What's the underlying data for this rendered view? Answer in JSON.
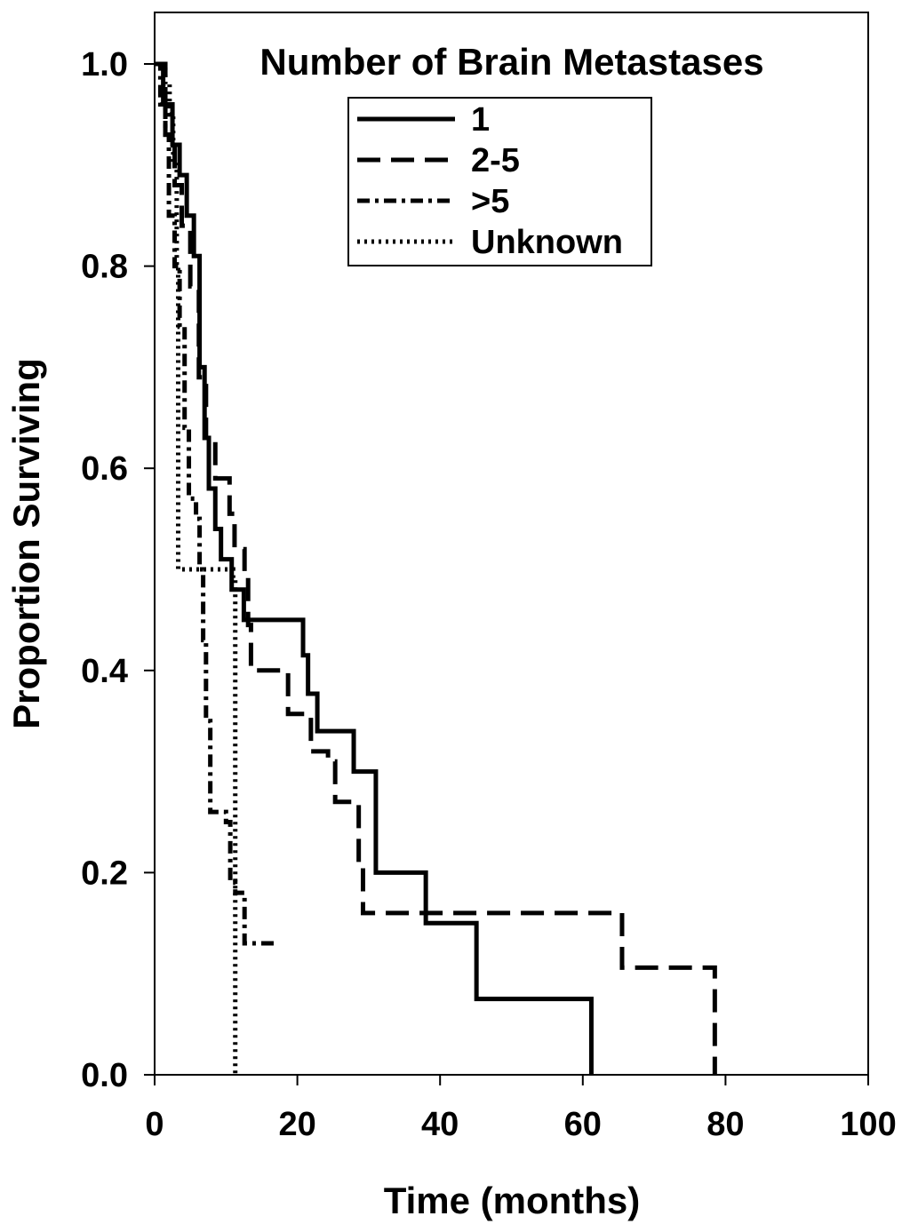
{
  "chart_data": {
    "type": "line",
    "title": "Number of Brain Metastases",
    "xlabel": "Time (months)",
    "ylabel": "Proportion Surviving",
    "xlim": [
      0,
      100
    ],
    "ylim": [
      0,
      1.0
    ],
    "x_ticks": [
      "0",
      "20",
      "40",
      "60",
      "80",
      "100"
    ],
    "y_ticks": [
      "0.0",
      "0.2",
      "0.4",
      "0.6",
      "0.8",
      "1.0"
    ],
    "grid": false,
    "legend_position": "top-center",
    "series": [
      {
        "name": "1",
        "style": "solid",
        "points": [
          [
            0,
            1.0
          ],
          [
            1.2,
            0.96
          ],
          [
            2.5,
            0.92
          ],
          [
            3.5,
            0.89
          ],
          [
            4.5,
            0.85
          ],
          [
            5.5,
            0.81
          ],
          [
            6.3,
            0.7
          ],
          [
            7.0,
            0.63
          ],
          [
            7.6,
            0.58
          ],
          [
            8.5,
            0.54
          ],
          [
            9.3,
            0.51
          ],
          [
            10.8,
            0.48
          ],
          [
            12.5,
            0.45
          ],
          [
            20.8,
            0.415
          ],
          [
            21.5,
            0.377
          ],
          [
            22.8,
            0.34
          ],
          [
            27.9,
            0.3
          ],
          [
            31.0,
            0.2
          ],
          [
            38.0,
            0.15
          ],
          [
            45.1,
            0.075
          ],
          [
            61.2,
            0.0
          ]
        ]
      },
      {
        "name": "2-5",
        "style": "dashed",
        "points": [
          [
            0,
            1.0
          ],
          [
            1.5,
            0.93
          ],
          [
            2.8,
            0.88
          ],
          [
            3.8,
            0.84
          ],
          [
            5.0,
            0.78
          ],
          [
            6.2,
            0.69
          ],
          [
            7.2,
            0.63
          ],
          [
            8.5,
            0.59
          ],
          [
            10.5,
            0.555
          ],
          [
            11.2,
            0.52
          ],
          [
            12.6,
            0.495
          ],
          [
            13.1,
            0.445
          ],
          [
            13.5,
            0.4
          ],
          [
            18.7,
            0.357
          ],
          [
            21.9,
            0.32
          ],
          [
            24.3,
            0.31
          ],
          [
            25.3,
            0.27
          ],
          [
            28.6,
            0.21
          ],
          [
            29.2,
            0.16
          ],
          [
            65.5,
            0.106
          ],
          [
            78.5,
            0.0
          ]
        ]
      },
      {
        "name": ">5",
        "style": "dashdot",
        "points": [
          [
            0,
            1.0
          ],
          [
            0.8,
            0.96
          ],
          [
            1.5,
            0.93
          ],
          [
            2.0,
            0.85
          ],
          [
            2.8,
            0.8
          ],
          [
            3.5,
            0.74
          ],
          [
            4.2,
            0.64
          ],
          [
            4.8,
            0.57
          ],
          [
            5.8,
            0.55
          ],
          [
            6.3,
            0.5
          ],
          [
            6.8,
            0.43
          ],
          [
            7.2,
            0.35
          ],
          [
            7.8,
            0.26
          ],
          [
            10.0,
            0.25
          ],
          [
            10.6,
            0.19
          ],
          [
            11.3,
            0.18
          ],
          [
            12.6,
            0.13
          ],
          [
            17.4,
            0.13
          ]
        ]
      },
      {
        "name": "Unknown",
        "style": "dotted",
        "points": [
          [
            0,
            1.0
          ],
          [
            1.5,
            0.98
          ],
          [
            2.1,
            0.95
          ],
          [
            2.6,
            0.9
          ],
          [
            3.1,
            0.8
          ],
          [
            3.3,
            0.5
          ],
          [
            11.0,
            0.49
          ],
          [
            11.3,
            0.0
          ]
        ]
      }
    ]
  }
}
